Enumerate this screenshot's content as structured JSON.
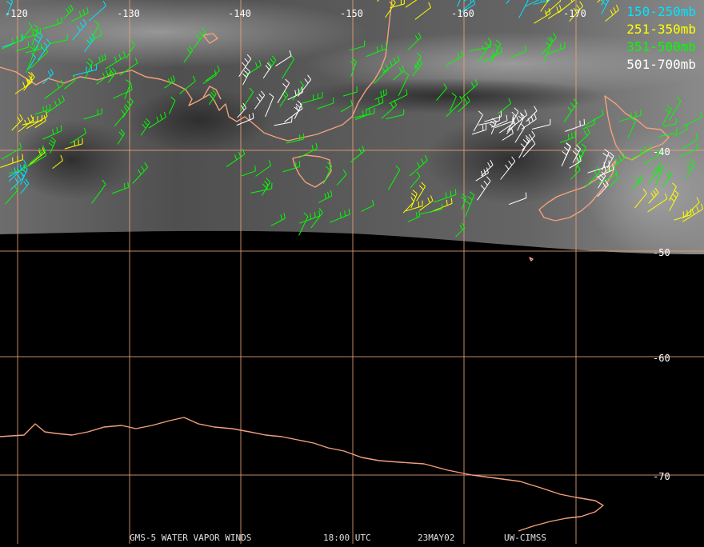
{
  "map": {
    "longitude_labels": [
      {
        "text": "-120",
        "lon": -120
      },
      {
        "text": "-130",
        "lon": -130
      },
      {
        "text": "-140",
        "lon": -140
      },
      {
        "text": "-150",
        "lon": -150
      },
      {
        "text": "-160",
        "lon": -160
      },
      {
        "text": "-170",
        "lon": -170
      }
    ],
    "latitude_labels": [
      {
        "text": "-40",
        "lat": -40
      },
      {
        "text": "-50",
        "lat": -50
      },
      {
        "text": "-60",
        "lat": -60
      },
      {
        "text": "-70",
        "lat": -70
      }
    ],
    "colors": {
      "grid": "#e8a07a",
      "coast": "#f4a07c",
      "background": "#000000"
    }
  },
  "legend": [
    {
      "label": "150-250mb",
      "color": "#00e5ff"
    },
    {
      "label": "251-350mb",
      "color": "#ffff00"
    },
    {
      "label": "351-500mb",
      "color": "#00ff00"
    },
    {
      "label": "501-700mb",
      "color": "#ffffff"
    }
  ],
  "footer": {
    "satellite": "GMS-5 WATER VAPOR WINDS",
    "time": "18:00 UTC",
    "date": "23MAY02",
    "source": "UW-CIMSS"
  }
}
